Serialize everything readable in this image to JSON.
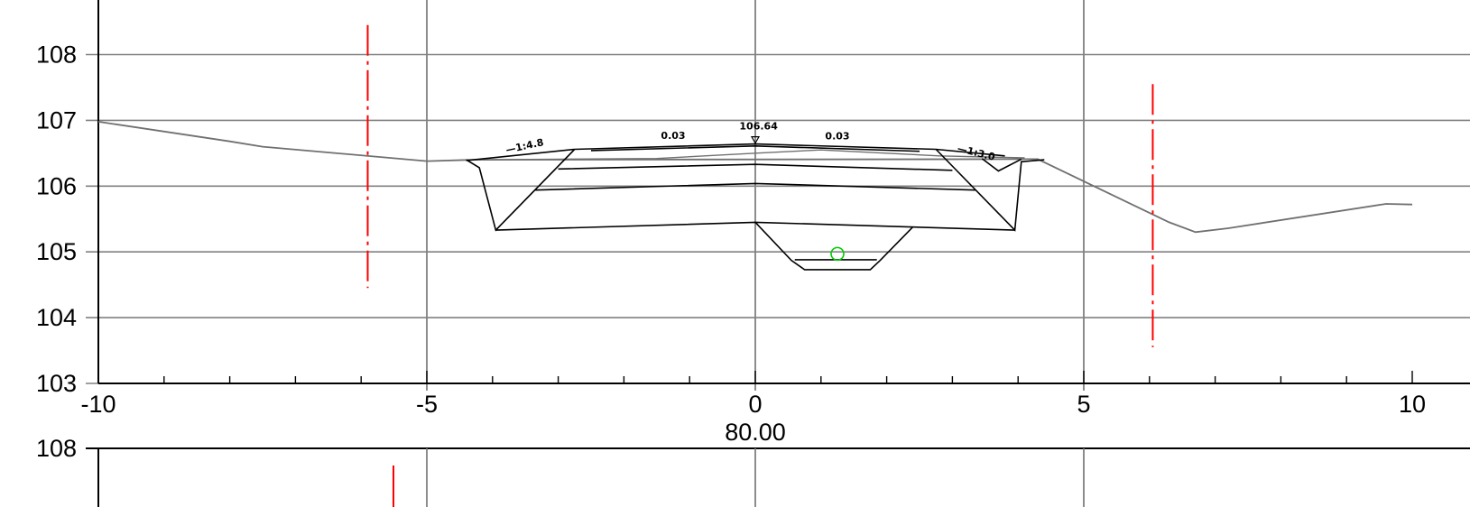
{
  "chart_data": [
    {
      "type": "cross-section",
      "station": "80.00",
      "xlim": [
        -10,
        10
      ],
      "ylim": [
        103,
        108
      ],
      "x_ticks": [
        "-10",
        "-5",
        "0",
        "5",
        "10"
      ],
      "y_ticks": [
        "103",
        "104",
        "105",
        "106",
        "107",
        "108"
      ],
      "grid": true,
      "ground_line": [
        [
          -10,
          106.98
        ],
        [
          -8.0,
          106.68
        ],
        [
          -7.5,
          106.6
        ],
        [
          -5.0,
          106.38
        ],
        [
          -4.3,
          106.4
        ],
        [
          4.3,
          106.41
        ],
        [
          6.3,
          105.45
        ],
        [
          6.7,
          105.3
        ],
        [
          7.2,
          105.36
        ],
        [
          9.6,
          105.73
        ],
        [
          10,
          105.72
        ]
      ],
      "road_surface_top": [
        [
          -4.4,
          106.39
        ],
        [
          -2.75,
          106.56
        ],
        [
          0,
          106.64
        ],
        [
          2.75,
          106.56
        ],
        [
          3.8,
          106.46
        ]
      ],
      "road_surface_inner": [
        [
          -2.5,
          106.54
        ],
        [
          0,
          106.61
        ],
        [
          2.5,
          106.53
        ]
      ],
      "existing_level": [
        [
          -4.1,
          106.4
        ],
        [
          -1.5,
          106.42
        ],
        [
          0,
          106.5
        ],
        [
          1.0,
          106.55
        ],
        [
          2.8,
          106.46
        ],
        [
          4.1,
          106.43
        ]
      ],
      "layer_lines": [
        [
          [
            -3.0,
            106.26
          ],
          [
            0,
            106.33
          ],
          [
            3.0,
            106.24
          ]
        ],
        [
          [
            -3.35,
            105.94
          ],
          [
            0,
            106.04
          ],
          [
            3.35,
            105.94
          ]
        ],
        [
          [
            -3.95,
            105.33
          ],
          [
            0,
            105.45
          ],
          [
            3.95,
            105.33
          ]
        ]
      ],
      "excavation_outline": [
        [
          -4.4,
          106.4
        ],
        [
          -4.2,
          106.28
        ],
        [
          -3.95,
          105.33
        ],
        [
          -2.75,
          106.56
        ]
      ],
      "excavation_outline_right": [
        [
          4.4,
          106.4
        ],
        [
          4.05,
          106.37
        ],
        [
          3.95,
          105.33
        ],
        [
          2.75,
          106.56
        ]
      ],
      "right_ditch": [
        [
          3.45,
          106.42
        ],
        [
          3.7,
          106.23
        ],
        [
          4.05,
          106.41
        ]
      ],
      "trench": [
        [
          0,
          105.45
        ],
        [
          0.55,
          104.87
        ],
        [
          0.75,
          104.73
        ],
        [
          1.75,
          104.73
        ],
        [
          1.9,
          104.87
        ],
        [
          2.4,
          105.38
        ]
      ],
      "trench_inner": [
        [
          0.6,
          104.88
        ],
        [
          1.85,
          104.88
        ]
      ],
      "pipe_center": [
        1.25,
        104.97
      ],
      "right_of_way_left": {
        "x": -5.9,
        "y_from": 104.45,
        "y_to": 108.45
      },
      "right_of_way_right": {
        "x": 6.05,
        "y_from": 103.55,
        "y_to": 107.55
      },
      "annotations": [
        {
          "text": "106.64",
          "x": 0.05,
          "y": 106.86
        },
        {
          "text": "0.03",
          "x": -1.25,
          "y": 106.72
        },
        {
          "text": "0.03",
          "x": 1.25,
          "y": 106.71
        },
        {
          "text": "1:4.8",
          "x": -3.5,
          "y": 106.56
        },
        {
          "text": "1:3.0",
          "x": 3.35,
          "y": 106.46
        }
      ],
      "colors": {
        "grid": "#808080",
        "ground": "#707070",
        "design": "#000000",
        "right_of_way": "#ff0000",
        "pipe": "#00cc00"
      }
    },
    {
      "type": "cross-section",
      "ylim_top": 108,
      "y_ticks": [
        "108"
      ],
      "grid": true
    }
  ]
}
